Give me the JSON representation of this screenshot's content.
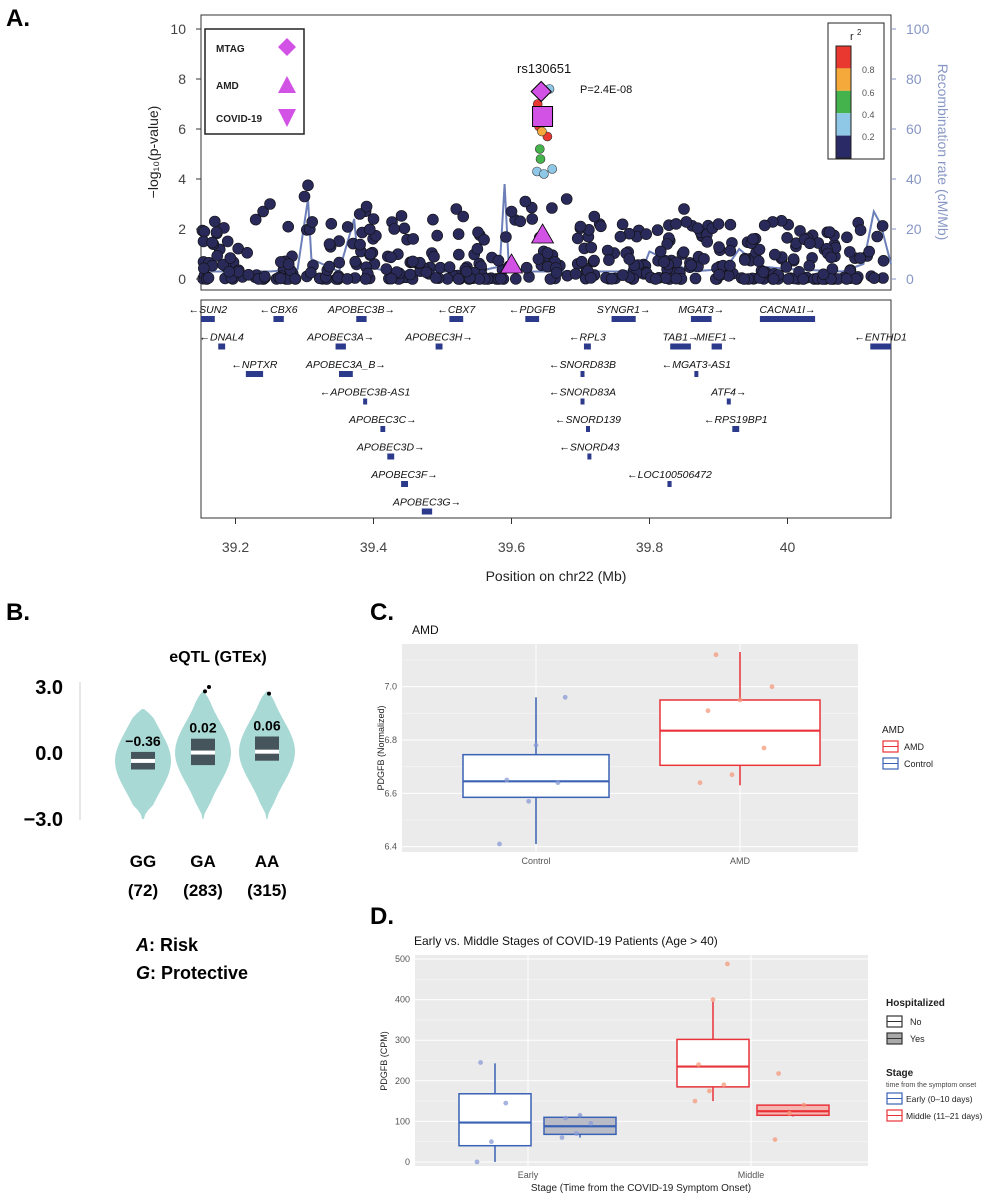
{
  "panels": [
    "A.",
    "B.",
    "C.",
    "D."
  ],
  "colors": {
    "point_navy": "#2a2a5a",
    "recomb_line": "#6c7fb8",
    "lead_magenta": "#d352e6",
    "violin": "#a8d9d5",
    "box_dark": "#46545c",
    "control_blue": "#3a62b4",
    "amd_red": "#e8333a",
    "panel_bg": "#ebebeb"
  },
  "chart_data": [
    {
      "id": "A",
      "type": "scatter",
      "ylabel": "−log₁₀(p-value)",
      "y2label": "Recombination rate (cM/Mb)",
      "xlabel": "Position on chr22 (Mb)",
      "xlim": [
        39.15,
        40.15
      ],
      "ylim": [
        0,
        10
      ],
      "y2lim": [
        0,
        100
      ],
      "x_ticks": [
        "39.2",
        "39.4",
        "39.6",
        "39.8",
        "40"
      ],
      "y_ticks": [
        "0",
        "2",
        "4",
        "6",
        "8",
        "10"
      ],
      "y2_ticks": [
        "0",
        "20",
        "40",
        "60",
        "80",
        "100"
      ],
      "legend": [
        {
          "label": "MTAG",
          "marker": "diamond"
        },
        {
          "label": "AMD",
          "marker": "triangle-up"
        },
        {
          "label": "COVID-19",
          "marker": "triangle-down"
        }
      ],
      "r2_legend": {
        "title": "r",
        "title_sup": "2",
        "labels": [
          "0.8",
          "0.6",
          "0.4",
          "0.2"
        ],
        "colors": [
          "#e8382f",
          "#f5a93a",
          "#45b34b",
          "#8ec8e6",
          "#2a2a66"
        ]
      },
      "annotation": {
        "snp": "rs130651",
        "p": "P=2.4E-08"
      },
      "lead_markers": [
        {
          "name": "MTAG",
          "marker": "diamond",
          "x": 39.643,
          "y": 7.5
        },
        {
          "name": "COVID-19",
          "marker": "square",
          "x": 39.645,
          "y": 6.5
        },
        {
          "name": "AMD",
          "marker": "triangle-up",
          "x": 39.645,
          "y": 1.8
        },
        {
          "name": "AMD",
          "marker": "triangle-up",
          "x": 39.6,
          "y": 0.6
        }
      ],
      "colored_points": [
        {
          "x": 39.655,
          "y": 7.6,
          "r2": "0.2"
        },
        {
          "x": 39.638,
          "y": 7.0,
          "r2": "0.8"
        },
        {
          "x": 39.64,
          "y": 6.1,
          "r2": "0.8"
        },
        {
          "x": 39.652,
          "y": 5.7,
          "r2": "0.8"
        },
        {
          "x": 39.644,
          "y": 5.9,
          "r2": "0.6"
        },
        {
          "x": 39.641,
          "y": 5.2,
          "r2": "0.4"
        },
        {
          "x": 39.642,
          "y": 4.8,
          "r2": "0.4"
        },
        {
          "x": 39.637,
          "y": 4.3,
          "r2": "0.2"
        },
        {
          "x": 39.647,
          "y": 4.2,
          "r2": "0.2"
        },
        {
          "x": 39.659,
          "y": 4.4,
          "r2": "0.2"
        }
      ],
      "genes": [
        {
          "name": "SUN2",
          "start": 39.15,
          "end": 39.17,
          "dir": "-",
          "row": 0
        },
        {
          "name": "CBX6",
          "start": 39.255,
          "end": 39.27,
          "dir": "-",
          "row": 0
        },
        {
          "name": "APOBEC3B",
          "start": 39.375,
          "end": 39.39,
          "dir": "+",
          "row": 0
        },
        {
          "name": "CBX7",
          "start": 39.51,
          "end": 39.53,
          "dir": "-",
          "row": 0
        },
        {
          "name": "PDGFB",
          "start": 39.62,
          "end": 39.64,
          "dir": "-",
          "row": 0
        },
        {
          "name": "SYNGR1",
          "start": 39.745,
          "end": 39.78,
          "dir": "+",
          "row": 0
        },
        {
          "name": "MGAT3",
          "start": 39.86,
          "end": 39.89,
          "dir": "+",
          "row": 0
        },
        {
          "name": "CACNA1I",
          "start": 39.96,
          "end": 40.04,
          "dir": "+",
          "row": 0
        },
        {
          "name": "DNAL4",
          "start": 39.175,
          "end": 39.185,
          "dir": "-",
          "row": 1
        },
        {
          "name": "APOBEC3A",
          "start": 39.345,
          "end": 39.36,
          "dir": "+",
          "row": 1
        },
        {
          "name": "APOBEC3H",
          "start": 39.49,
          "end": 39.5,
          "dir": "+",
          "row": 1
        },
        {
          "name": "RPL3",
          "start": 39.705,
          "end": 39.715,
          "dir": "-",
          "row": 1
        },
        {
          "name": "TAB1",
          "start": 39.83,
          "end": 39.86,
          "dir": "+",
          "row": 1
        },
        {
          "name": "MIEF1",
          "start": 39.89,
          "end": 39.905,
          "dir": "+",
          "row": 1
        },
        {
          "name": "ENTHD1",
          "start": 40.12,
          "end": 40.15,
          "dir": "-",
          "row": 1
        },
        {
          "name": "NPTXR",
          "start": 39.215,
          "end": 39.24,
          "dir": "-",
          "row": 2
        },
        {
          "name": "APOBEC3A_B",
          "start": 39.35,
          "end": 39.37,
          "dir": "+",
          "row": 2
        },
        {
          "name": "SNORD83B",
          "start": 39.7,
          "end": 39.702,
          "dir": "-",
          "row": 2
        },
        {
          "name": "MGAT3-AS1",
          "start": 39.865,
          "end": 39.87,
          "dir": "-",
          "row": 2
        },
        {
          "name": "APOBEC3B-AS1",
          "start": 39.385,
          "end": 39.39,
          "dir": "-",
          "row": 3
        },
        {
          "name": "SNORD83A",
          "start": 39.7,
          "end": 39.702,
          "dir": "-",
          "row": 3
        },
        {
          "name": "ATF4",
          "start": 39.912,
          "end": 39.916,
          "dir": "+",
          "row": 3
        },
        {
          "name": "APOBEC3C",
          "start": 39.41,
          "end": 39.417,
          "dir": "+",
          "row": 4
        },
        {
          "name": "SNORD139",
          "start": 39.708,
          "end": 39.71,
          "dir": "-",
          "row": 4
        },
        {
          "name": "RPS19BP1",
          "start": 39.92,
          "end": 39.93,
          "dir": "-",
          "row": 4
        },
        {
          "name": "APOBEC3D",
          "start": 39.42,
          "end": 39.43,
          "dir": "+",
          "row": 5
        },
        {
          "name": "SNORD43",
          "start": 39.71,
          "end": 39.712,
          "dir": "-",
          "row": 5
        },
        {
          "name": "APOBEC3F",
          "start": 39.44,
          "end": 39.45,
          "dir": "+",
          "row": 6
        },
        {
          "name": "LOC100506472",
          "start": 39.826,
          "end": 39.832,
          "dir": "-",
          "row": 6
        },
        {
          "name": "APOBEC3G",
          "start": 39.47,
          "end": 39.485,
          "dir": "+",
          "row": 7
        }
      ]
    },
    {
      "id": "B",
      "type": "violin",
      "title": "eQTL (GTEx)",
      "y_ticks": [
        "3.0",
        "0.0",
        "−3.0"
      ],
      "ylim": [
        -3.0,
        3.0
      ],
      "categories": [
        "GG",
        "GA",
        "AA"
      ],
      "counts": [
        "(72)",
        "(283)",
        "(315)"
      ],
      "values": [
        "−0.36",
        "0.02",
        "0.06"
      ],
      "box": [
        {
          "q1": -0.75,
          "median": -0.36,
          "q3": 0.05
        },
        {
          "q1": -0.55,
          "median": 0.02,
          "q3": 0.65
        },
        {
          "q1": -0.35,
          "median": 0.06,
          "q3": 0.75
        }
      ],
      "outliers": [
        [],
        [
          2.8,
          3.0
        ],
        [
          2.7
        ]
      ],
      "legend": [
        {
          "allele": "A",
          "meaning": ": Risk"
        },
        {
          "allele": "G",
          "meaning": ": Protective"
        }
      ]
    },
    {
      "id": "C",
      "type": "box",
      "title": "AMD",
      "ylabel": "PDGFB (Normalized)",
      "ylim": [
        6.38,
        7.16
      ],
      "y_ticks": [
        "6.4",
        "6.6",
        "6.8",
        "7.0"
      ],
      "categories": [
        "Control",
        "AMD"
      ],
      "legend_title": "AMD",
      "legend": [
        "AMD",
        "Control"
      ],
      "boxes": [
        {
          "name": "Control",
          "min": 6.41,
          "q1": 6.585,
          "median": 6.645,
          "q3": 6.745,
          "max": 6.96,
          "points": [
            6.41,
            6.57,
            6.64,
            6.65,
            6.78,
            6.96
          ]
        },
        {
          "name": "AMD",
          "min": 6.63,
          "q1": 6.705,
          "median": 6.835,
          "q3": 6.95,
          "max": 7.13,
          "points": [
            6.64,
            6.67,
            6.77,
            6.91,
            6.95,
            7.0,
            7.12
          ]
        }
      ]
    },
    {
      "id": "D",
      "type": "box",
      "title": "Early vs. Middle Stages of COVID-19 Patients (Age > 40)",
      "xlabel": "Stage (Time from the COVID-19 Symptom Onset)",
      "ylabel": "PDGFB (CPM)",
      "ylim": [
        -10,
        510
      ],
      "y_ticks": [
        "0",
        "100",
        "200",
        "300",
        "400",
        "500"
      ],
      "categories": [
        "Early",
        "Middle"
      ],
      "legend_hosp_title": "Hospitalized",
      "legend_hosp": [
        "No",
        "Yes"
      ],
      "legend_stage_title": "Stage",
      "legend_stage_subtitle": "time from the symptom onset",
      "legend_stage": [
        "Early (0–10 days)",
        "Middle (11–21 days)"
      ],
      "boxes": [
        {
          "stage": "Early",
          "hospitalized": "No",
          "min": 0,
          "q1": 40,
          "median": 97,
          "q3": 168,
          "max": 243,
          "points": [
            0,
            50,
            145,
            245
          ]
        },
        {
          "stage": "Early",
          "hospitalized": "Yes",
          "min": 60,
          "q1": 68,
          "median": 88,
          "q3": 110,
          "max": 115,
          "points": [
            60,
            70,
            95,
            108,
            115
          ]
        },
        {
          "stage": "Middle",
          "hospitalized": "No",
          "min": 150,
          "q1": 185,
          "median": 235,
          "q3": 302,
          "max": 395,
          "points": [
            150,
            175,
            190,
            240,
            400,
            488
          ]
        },
        {
          "stage": "Middle",
          "hospitalized": "Yes",
          "min": 112,
          "q1": 115,
          "median": 125,
          "q3": 140,
          "max": 140,
          "points": [
            55,
            120,
            140,
            218
          ]
        }
      ]
    }
  ]
}
